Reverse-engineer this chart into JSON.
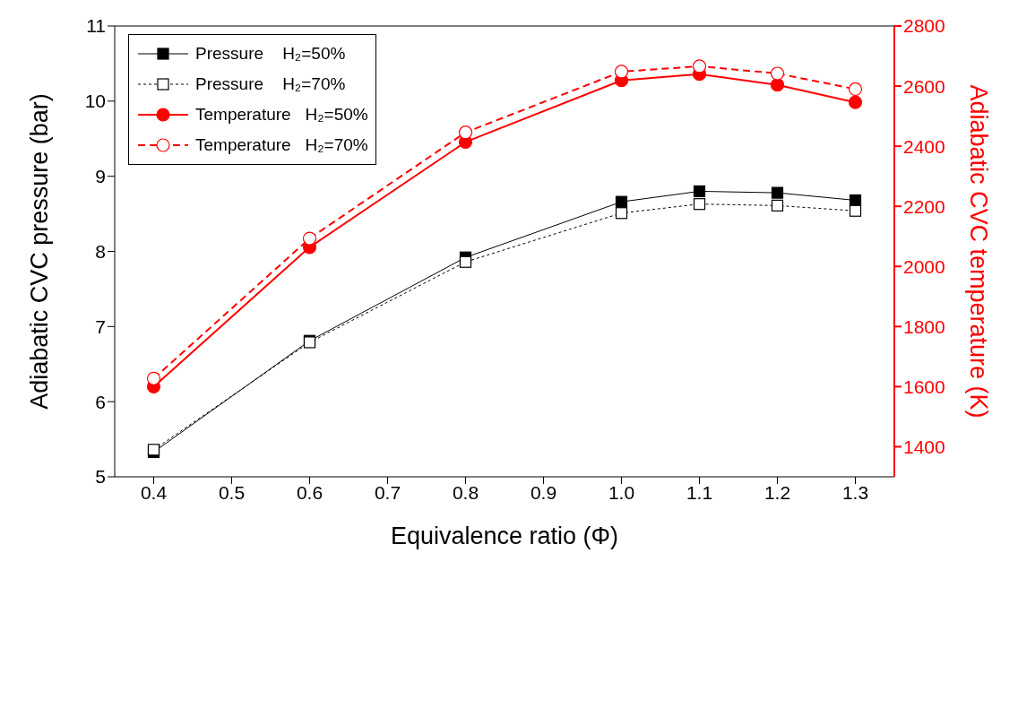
{
  "chart_data": {
    "type": "line",
    "xlabel": "Equivalence ratio (Φ)",
    "ylabel": "Adiabatic CVC pressure (bar)",
    "y2label": "Adiabatic CVC temperature (K)",
    "x": [
      0.4,
      0.6,
      0.8,
      1.0,
      1.1,
      1.2,
      1.3
    ],
    "xlim": [
      0.35,
      1.35
    ],
    "xticks": [
      0.4,
      0.5,
      0.6,
      0.7,
      0.8,
      0.9,
      {
        "value": 1.0,
        "label": "1.0"
      },
      1.1,
      1.2,
      1.3
    ],
    "ylim": [
      5,
      11
    ],
    "yticks": [
      5,
      6,
      7,
      8,
      9,
      10,
      11
    ],
    "y2lim": [
      1300,
      2800
    ],
    "y2ticks": [
      1400,
      1600,
      1800,
      2000,
      2200,
      2400,
      2600,
      2800
    ],
    "grid": false,
    "legend": "top left",
    "series": [
      {
        "name": "Pressure    H₂=50%",
        "color": "#000000",
        "marker": "square",
        "line_style": "solid",
        "values": [
          5.33,
          6.81,
          7.92,
          8.66,
          8.8,
          8.78,
          8.68
        ]
      },
      {
        "name": "Pressure    H₂=70%",
        "color": "#000000",
        "marker": "square",
        "line_style": "dotted",
        "values": [
          5.36,
          6.79,
          7.86,
          8.51,
          8.63,
          8.61,
          8.54
        ]
      },
      {
        "name": "Temperature   H₂=50%",
        "color": "#ff0000",
        "marker": "circle",
        "line_style": "solid",
        "axis": "y2",
        "values": [
          1600,
          2064,
          2414,
          2619,
          2640,
          2604,
          2546
        ]
      },
      {
        "name": "Temperature   H₂=70%",
        "color": "#ff0000",
        "marker": "circle",
        "line_style": "dashed",
        "axis": "y2",
        "values": [
          1627,
          2093,
          2446,
          2648,
          2666,
          2642,
          2590
        ]
      }
    ]
  }
}
